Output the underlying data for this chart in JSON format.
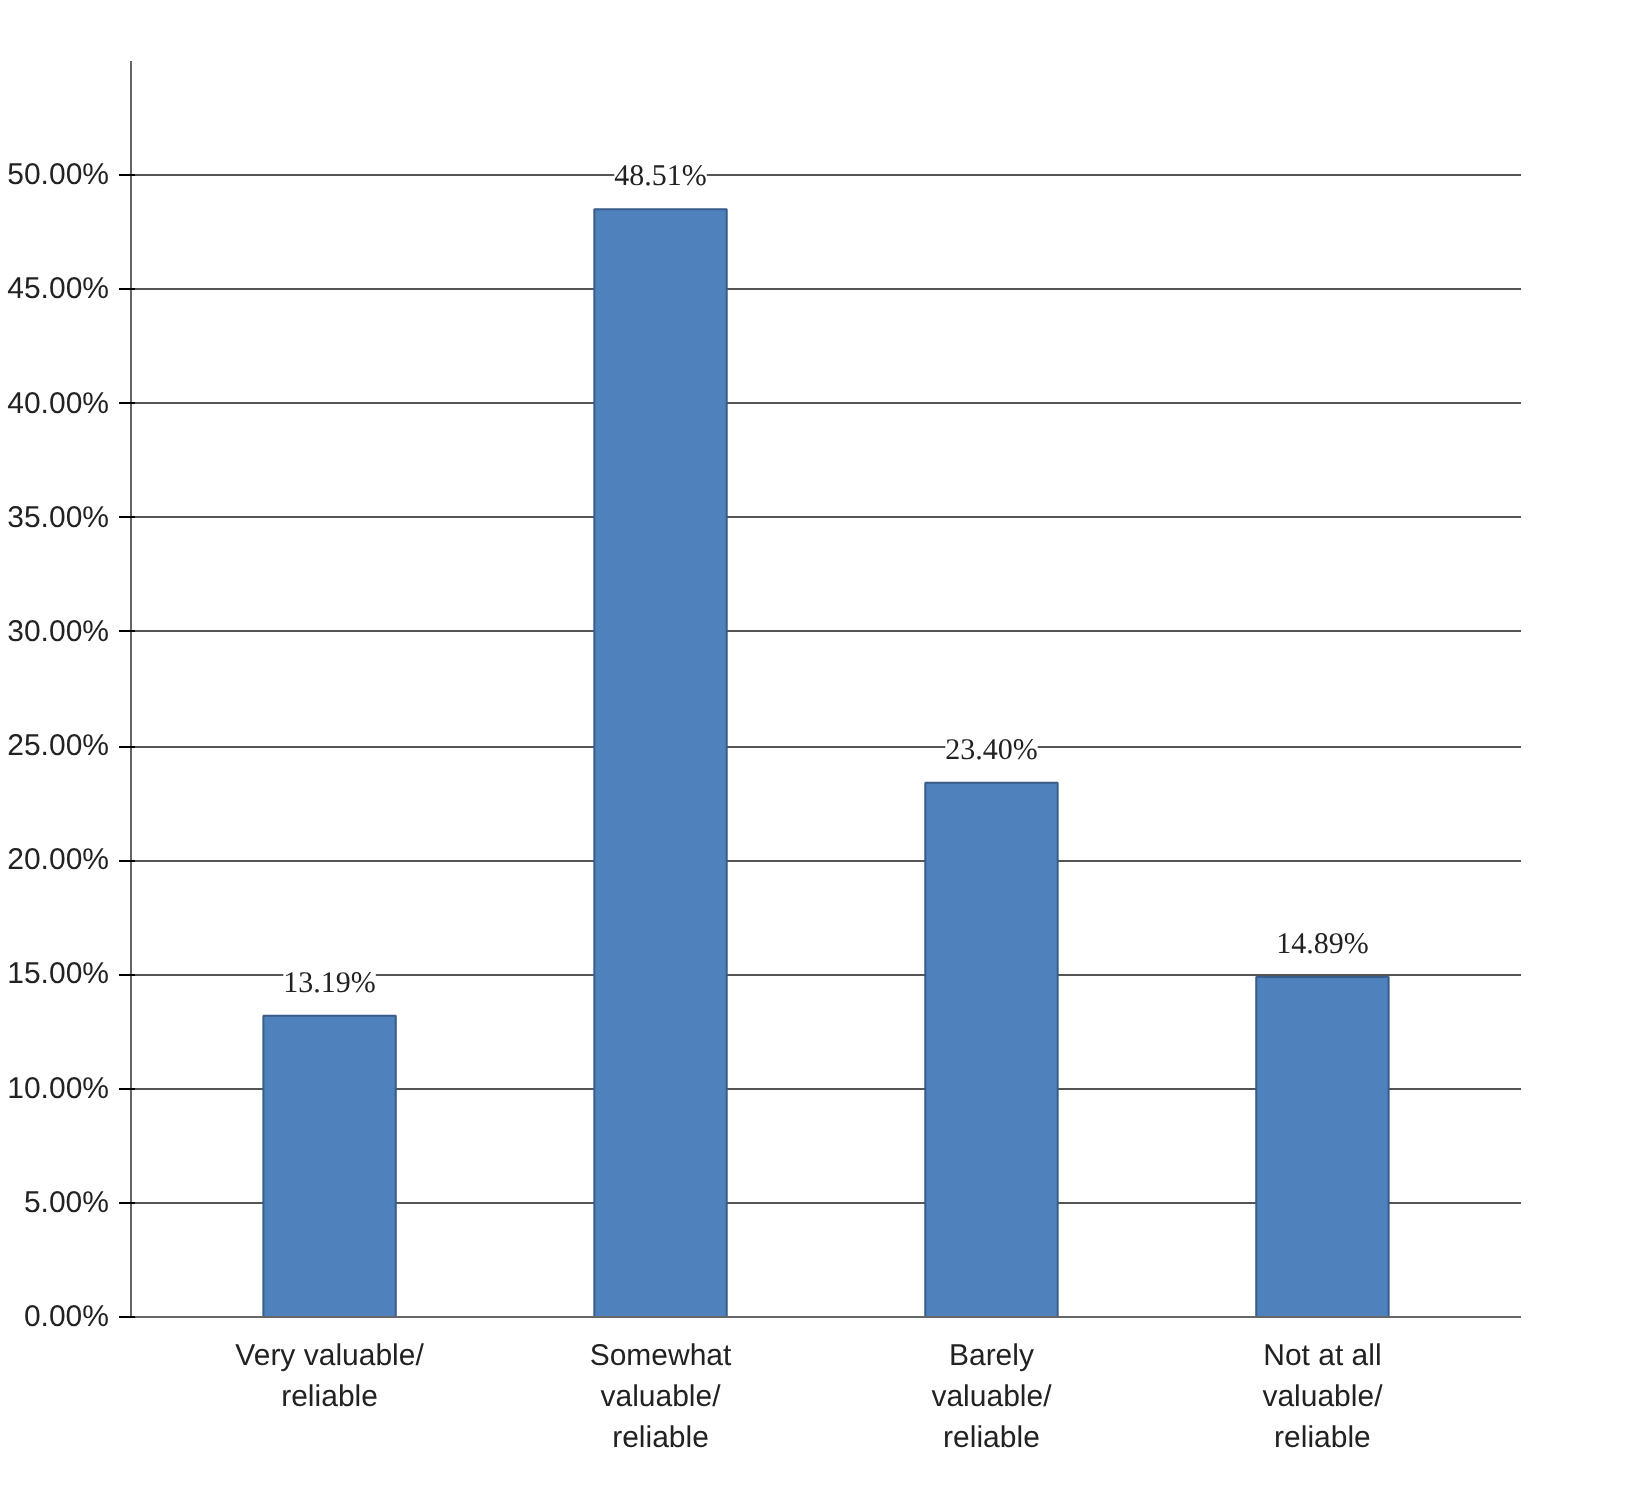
{
  "chart_data": {
    "type": "bar",
    "categories": [
      "Very valuable/\nreliable",
      "Somewhat\nvaluable/\nreliable",
      "Barely\nvaluable/\nreliable",
      "Not at all\nvaluable/\nreliable"
    ],
    "values": [
      13.19,
      48.51,
      23.4,
      14.89
    ],
    "value_labels": [
      "13.19%",
      "48.51%",
      "23.40%",
      "14.89%"
    ],
    "color": "#4f81bd",
    "ylim": [
      0,
      55
    ],
    "yticks": [
      {
        "value": 0,
        "label": "0.00%"
      },
      {
        "value": 5,
        "label": "5.00%"
      },
      {
        "value": 10,
        "label": "10.00%"
      },
      {
        "value": 15,
        "label": "15.00%"
      },
      {
        "value": 20,
        "label": "20.00%"
      },
      {
        "value": 25,
        "label": "25.00%"
      },
      {
        "value": 30,
        "label": "30.00%"
      },
      {
        "value": 35,
        "label": "35.00%"
      },
      {
        "value": 40,
        "label": "40.00%"
      },
      {
        "value": 45,
        "label": "45.00%"
      },
      {
        "value": 50,
        "label": "50.00%"
      }
    ],
    "grid": "y"
  }
}
